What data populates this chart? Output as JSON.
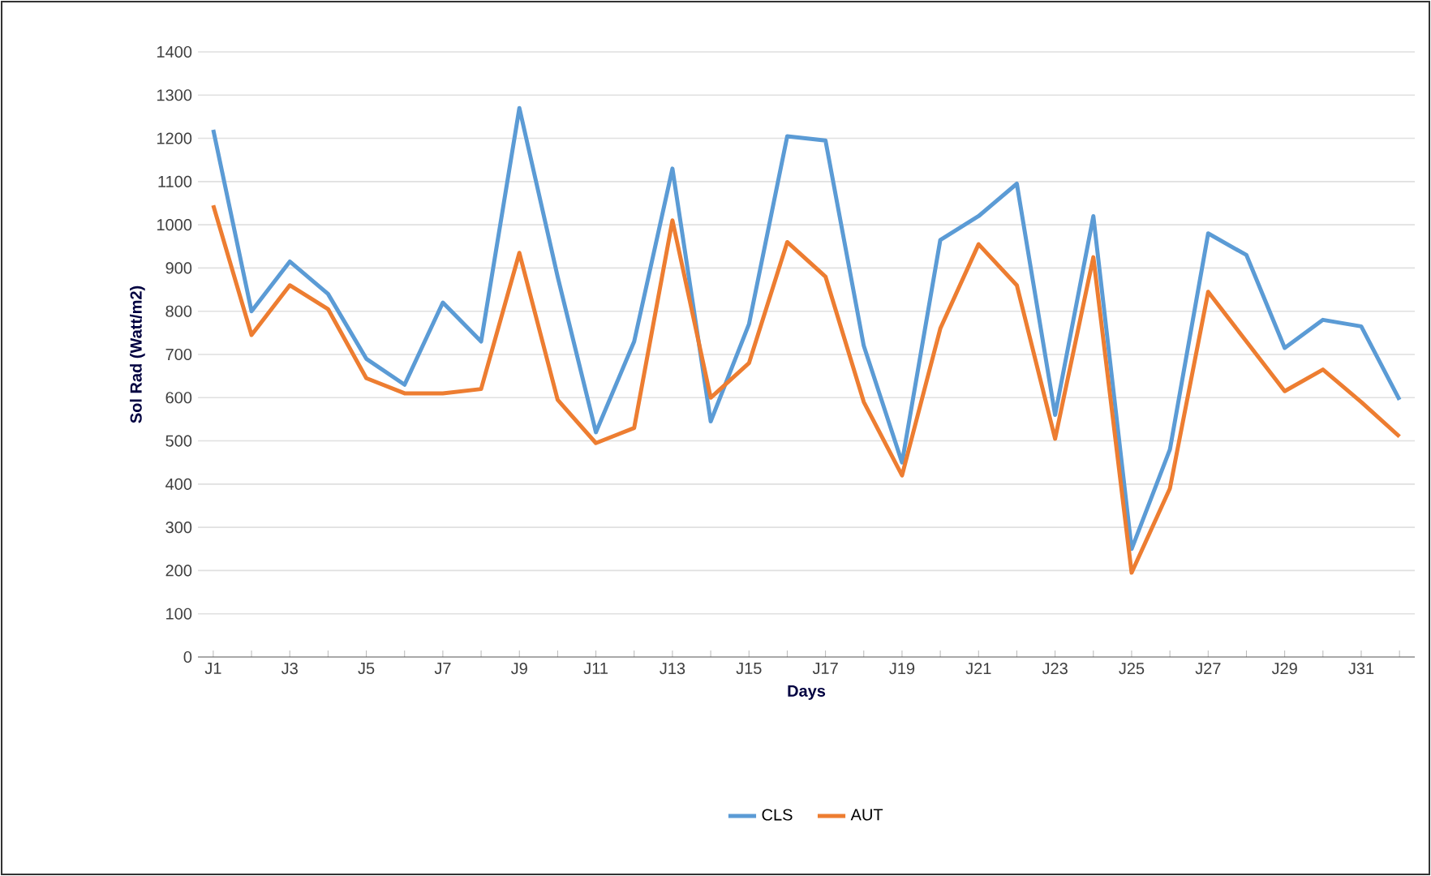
{
  "chart_data": {
    "type": "line",
    "xlabel": "Days",
    "ylabel": "Sol Rad (Watt/m2)",
    "categories": [
      "J1",
      null,
      "J3",
      null,
      "J5",
      null,
      "J7",
      null,
      "J9",
      null,
      "J11",
      null,
      "J13",
      null,
      "J15",
      null,
      "J17",
      null,
      "J19",
      null,
      "J21",
      null,
      "J23",
      null,
      "J25",
      null,
      "J27",
      null,
      "J29",
      null,
      "J31",
      null
    ],
    "series": [
      {
        "name": "CLS",
        "color": "#5b9bd5",
        "values": [
          1220,
          800,
          915,
          840,
          690,
          630,
          820,
          730,
          1270,
          880,
          520,
          730,
          1130,
          545,
          770,
          1205,
          1195,
          720,
          450,
          965,
          1020,
          1095,
          560,
          1020,
          250,
          480,
          980,
          930,
          715,
          780,
          765,
          595
        ]
      },
      {
        "name": "AUT",
        "color": "#ed7d31",
        "values": [
          1045,
          745,
          860,
          805,
          645,
          610,
          610,
          620,
          935,
          595,
          495,
          530,
          1010,
          600,
          680,
          960,
          880,
          590,
          420,
          760,
          955,
          860,
          505,
          925,
          195,
          390,
          845,
          730,
          615,
          665,
          590,
          510
        ]
      }
    ],
    "ylim": [
      0,
      1400
    ],
    "yticks": [
      0,
      100,
      200,
      300,
      400,
      500,
      600,
      700,
      800,
      900,
      1000,
      1100,
      1200,
      1300,
      1400
    ],
    "grid": "y",
    "legend": "bottom",
    "marker": "none",
    "line_style": "solid"
  }
}
